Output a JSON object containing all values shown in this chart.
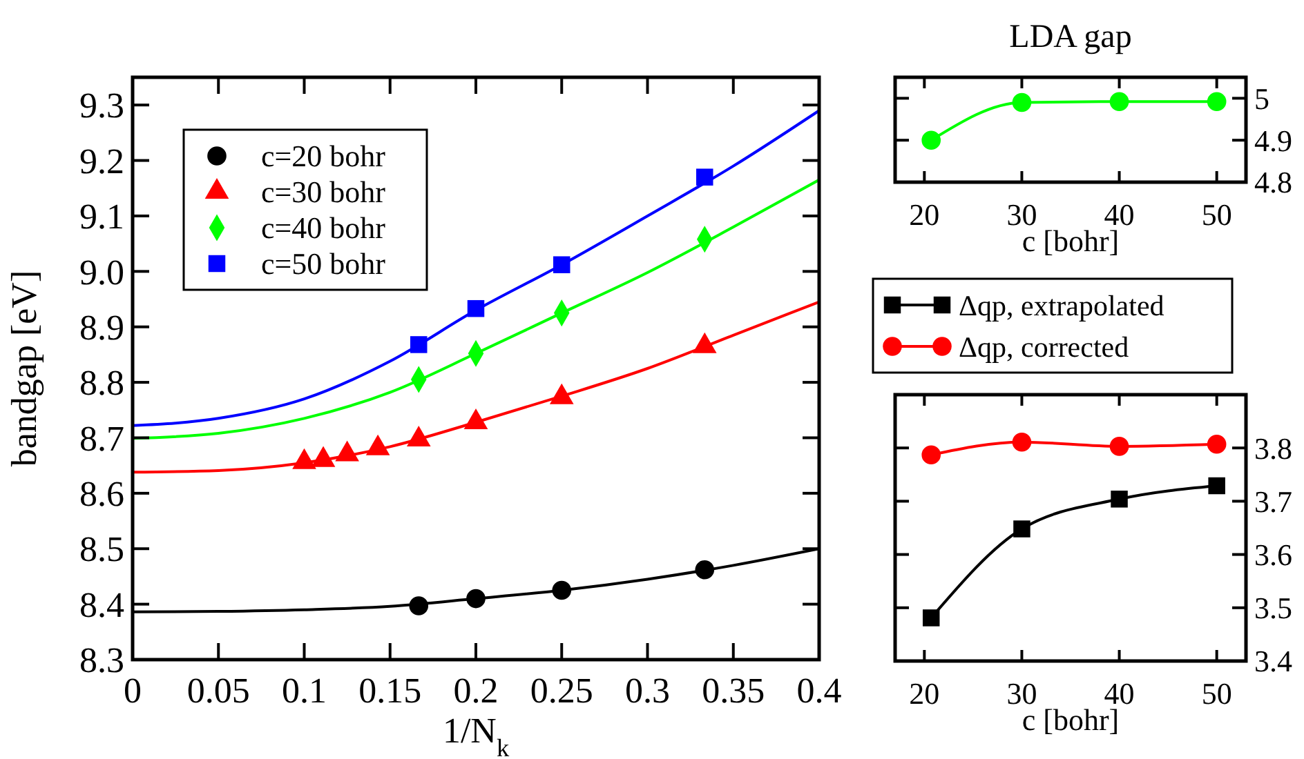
{
  "chart_data": [
    {
      "type": "scatter",
      "xlabel": "1/N$_{k}$",
      "ylabel": "bandgap [eV]",
      "legend": "top left",
      "xlim": [
        0,
        0.4
      ],
      "ylim": [
        8.3,
        9.35
      ],
      "xticks": [
        0,
        0.05,
        0.1,
        0.15,
        0.2,
        0.25,
        0.3,
        0.35,
        0.4
      ],
      "yticks": [
        8.3,
        8.4,
        8.5,
        8.6,
        8.7,
        8.8,
        {
          "value": 8.9,
          "label": "8.9"
        },
        {
          "value": 9.0,
          "label": "9.0"
        },
        9.1,
        9.2,
        9.3
      ],
      "series": [
        {
          "name": "c=20 bohr",
          "color": "#000000",
          "marker": "circle",
          "x": [
            0.1667,
            0.2,
            0.25,
            0.3333
          ],
          "values": [
            8.397,
            8.41,
            8.425,
            8.462
          ]
        },
        {
          "name": "c=30 bohr",
          "color": "#ff0000",
          "marker": "triangle",
          "x": [
            0.1,
            0.1111,
            0.125,
            0.1429,
            0.1667,
            0.2,
            0.25,
            0.3333
          ],
          "values": [
            8.656,
            8.66,
            8.67,
            8.681,
            8.697,
            8.728,
            8.773,
            8.865
          ]
        },
        {
          "name": "c=40 bohr",
          "color": "#00ff00",
          "marker": "diamond",
          "x": [
            0.1667,
            0.2,
            0.25,
            0.3333
          ],
          "values": [
            8.805,
            8.852,
            8.925,
            9.058
          ]
        },
        {
          "name": "c=50 bohr",
          "color": "#0000ff",
          "marker": "square",
          "x": [
            0.1667,
            0.2,
            0.25,
            0.3333
          ],
          "values": [
            8.868,
            8.933,
            9.012,
            9.17
          ]
        },
        {
          "type": "line",
          "color": "#000000",
          "marker": "none",
          "x": [
            0,
            0.05,
            0.1,
            0.15,
            0.2,
            0.25,
            0.3,
            0.35,
            0.4
          ],
          "values": [
            8.386,
            8.387,
            8.39,
            8.396,
            8.41,
            8.425,
            8.445,
            8.47,
            8.5
          ]
        },
        {
          "type": "line",
          "color": "#ff0000",
          "marker": "none",
          "x": [
            0,
            0.05,
            0.1,
            0.15,
            0.2,
            0.25,
            0.3,
            0.35,
            0.4
          ],
          "values": [
            8.638,
            8.641,
            8.655,
            8.684,
            8.728,
            8.775,
            8.825,
            8.885,
            8.945
          ]
        },
        {
          "type": "line",
          "color": "#00ff00",
          "marker": "none",
          "x": [
            0,
            0.05,
            0.1,
            0.15,
            0.2,
            0.25,
            0.3,
            0.35,
            0.4
          ],
          "values": [
            8.699,
            8.708,
            8.735,
            8.782,
            8.852,
            8.925,
            8.998,
            9.08,
            9.165
          ]
        },
        {
          "type": "line",
          "color": "#0000ff",
          "marker": "none",
          "x": [
            0,
            0.05,
            0.1,
            0.15,
            0.2,
            0.25,
            0.3,
            0.35,
            0.4
          ],
          "values": [
            8.722,
            8.735,
            8.77,
            8.838,
            8.93,
            9.012,
            9.1,
            9.19,
            9.29
          ]
        }
      ]
    },
    {
      "type": "line",
      "title": "LDA gap",
      "xlabel": "c [bohr]",
      "marker": "circle",
      "x": [
        20.7,
        30,
        40,
        50
      ],
      "xlim": [
        17,
        53
      ],
      "ylim": [
        4.8,
        5.05
      ],
      "xticks": [
        20,
        30,
        40,
        50
      ],
      "yticks": [
        4.8,
        4.9,
        5
      ],
      "series": [
        {
          "color": "#00ff00",
          "values": [
            4.9,
            4.99,
            4.992,
            4.992
          ]
        }
      ]
    },
    {
      "type": "line",
      "xlabel": "c [bohr]",
      "legend": "top",
      "x": [
        20.7,
        30,
        40,
        50
      ],
      "xlim": [
        17,
        53
      ],
      "ylim": [
        3.4,
        3.9
      ],
      "xticks": [
        20,
        30,
        40,
        50
      ],
      "yticks": [
        3.4,
        3.5,
        3.6,
        3.7,
        3.8
      ],
      "series": [
        {
          "name": "Δqp, extrapolated",
          "color": "#000000",
          "marker": "square",
          "values": [
            3.481,
            3.648,
            3.704,
            3.729
          ]
        },
        {
          "name": "Δqp, corrected",
          "color": "#ff0000",
          "marker": "circle",
          "values": [
            3.787,
            3.811,
            3.803,
            3.807
          ]
        }
      ]
    }
  ]
}
